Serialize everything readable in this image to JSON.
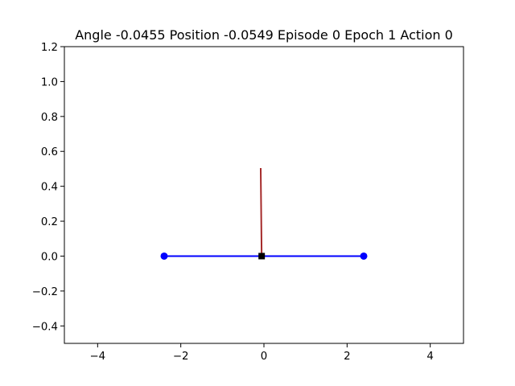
{
  "chart_data": {
    "type": "line",
    "title": "Angle -0.0455 Position -0.0549 Episode 0 Epoch 1 Action 0",
    "xlabel": "",
    "ylabel": "",
    "xlim": [
      -4.8,
      4.8
    ],
    "ylim": [
      -0.5,
      1.2
    ],
    "grid": false,
    "x_ticks": [
      {
        "value": -4,
        "label": "−4"
      },
      {
        "value": -2,
        "label": "−2"
      },
      {
        "value": 0,
        "label": "0"
      },
      {
        "value": 2,
        "label": "2"
      },
      {
        "value": 4,
        "label": "4"
      }
    ],
    "y_ticks": [
      {
        "value": -0.4,
        "label": "−0.4"
      },
      {
        "value": -0.2,
        "label": "−0.2"
      },
      {
        "value": 0.0,
        "label": "0.0"
      },
      {
        "value": 0.2,
        "label": "0.2"
      },
      {
        "value": 0.4,
        "label": "0.4"
      },
      {
        "value": 0.6,
        "label": "0.6"
      },
      {
        "value": 0.8,
        "label": "0.8"
      },
      {
        "value": 1.0,
        "label": "1.0"
      },
      {
        "value": 1.2,
        "label": "1.2"
      }
    ],
    "track": {
      "x": [
        -2.4,
        2.4
      ],
      "y": [
        0.0,
        0.0
      ],
      "color": "#0000ff",
      "marker": "circle"
    },
    "cart": {
      "x": -0.0549,
      "y": 0.0,
      "color": "#000000",
      "marker": "square"
    },
    "pole": {
      "x": [
        -0.0549,
        -0.0776
      ],
      "y": [
        0.0,
        0.4995
      ],
      "color": "#a52a2a"
    }
  }
}
